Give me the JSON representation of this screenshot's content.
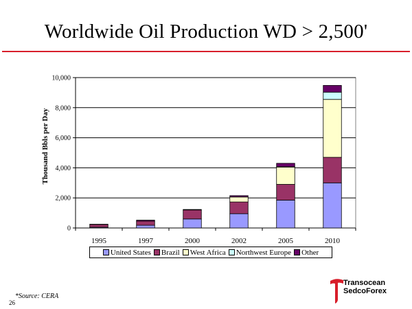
{
  "slide": {
    "title": "Worldwide Oil Production WD > 2,500'",
    "footnote": "*Source: CERA",
    "page_number": "26",
    "logo": {
      "line1": "Transocean",
      "line2": "SedcoForex",
      "icon": "transocean-t-icon"
    },
    "accent_color": "#d81e2a"
  },
  "chart_data": {
    "type": "bar",
    "stacked": true,
    "title": "",
    "xlabel": "",
    "ylabel": "Thousand Bbls per Day",
    "categories": [
      "1995",
      "1997",
      "2000",
      "2002",
      "2005",
      "2010"
    ],
    "ylim": [
      0,
      10000
    ],
    "yticks": [
      0,
      2000,
      4000,
      6000,
      8000,
      10000
    ],
    "ytick_labels": [
      "0",
      "2,000",
      "4,000",
      "6,000",
      "8,000",
      "10,000"
    ],
    "grid": true,
    "legend_position": "bottom",
    "series": [
      {
        "name": "United States",
        "color": "#9999ff",
        "values": [
          50,
          180,
          600,
          950,
          1850,
          3000
        ]
      },
      {
        "name": "Brazil",
        "color": "#993366",
        "values": [
          180,
          280,
          600,
          780,
          1050,
          1700
        ]
      },
      {
        "name": "West Africa",
        "color": "#ffffcc",
        "values": [
          0,
          0,
          0,
          330,
          1150,
          3850
        ]
      },
      {
        "name": "Northwest Europe",
        "color": "#ccffff",
        "values": [
          0,
          0,
          0,
          0,
          20,
          480
        ]
      },
      {
        "name": "Other",
        "color": "#660066",
        "values": [
          20,
          60,
          30,
          90,
          230,
          450
        ]
      }
    ]
  }
}
